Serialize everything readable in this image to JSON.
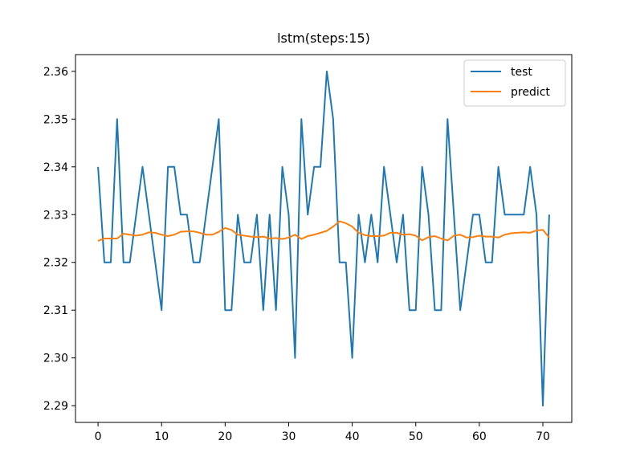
{
  "chart_data": {
    "type": "line",
    "title": "lstm(steps:15)",
    "xlabel": "",
    "ylabel": "",
    "xlim": [
      -3.55,
      74.55
    ],
    "ylim": [
      2.2865,
      2.3635
    ],
    "xticks": [
      0,
      10,
      20,
      30,
      40,
      50,
      60,
      70
    ],
    "yticks": [
      2.29,
      2.3,
      2.31,
      2.32,
      2.33,
      2.34,
      2.35,
      2.36
    ],
    "xtick_labels": [
      "0",
      "10",
      "20",
      "30",
      "40",
      "50",
      "60",
      "70"
    ],
    "ytick_labels": [
      "2.29",
      "2.30",
      "2.31",
      "2.32",
      "2.33",
      "2.34",
      "2.35",
      "2.36"
    ],
    "grid": false,
    "legend": "top-right",
    "series": [
      {
        "name": "test",
        "color": "#1f77b4",
        "values": [
          2.34,
          2.32,
          2.32,
          2.35,
          2.32,
          2.32,
          2.33,
          2.34,
          2.33,
          2.32,
          2.31,
          2.34,
          2.34,
          2.33,
          2.33,
          2.32,
          2.32,
          2.33,
          2.34,
          2.35,
          2.31,
          2.31,
          2.33,
          2.32,
          2.32,
          2.33,
          2.31,
          2.33,
          2.31,
          2.34,
          2.33,
          2.3,
          2.35,
          2.33,
          2.34,
          2.34,
          2.36,
          2.35,
          2.32,
          2.32,
          2.3,
          2.33,
          2.32,
          2.33,
          2.32,
          2.34,
          2.33,
          2.32,
          2.33,
          2.31,
          2.31,
          2.34,
          2.33,
          2.31,
          2.31,
          2.35,
          2.33,
          2.31,
          2.32,
          2.33,
          2.33,
          2.32,
          2.32,
          2.34,
          2.33,
          2.33,
          2.33,
          2.33,
          2.34,
          2.33,
          2.29,
          2.33
        ]
      },
      {
        "name": "predict",
        "color": "#ff7f0e",
        "values": [
          2.3245,
          2.325,
          2.325,
          2.325,
          2.326,
          2.3258,
          2.3256,
          2.3258,
          2.3263,
          2.3262,
          2.3258,
          2.3255,
          2.3258,
          2.3264,
          2.3265,
          2.3265,
          2.3262,
          2.3258,
          2.3258,
          2.3264,
          2.3272,
          2.3268,
          2.3258,
          2.3256,
          2.3254,
          2.3253,
          2.3254,
          2.325,
          2.3251,
          2.3249,
          2.3252,
          2.3258,
          2.3249,
          2.3255,
          2.3258,
          2.3262,
          2.3266,
          2.3275,
          2.3286,
          2.3282,
          2.3275,
          2.3262,
          2.3257,
          2.3255,
          2.3255,
          2.3256,
          2.3262,
          2.3262,
          2.3258,
          2.3259,
          2.3256,
          2.3246,
          2.3253,
          2.3255,
          2.325,
          2.3246,
          2.3256,
          2.3258,
          2.3252,
          2.3253,
          2.3256,
          2.3254,
          2.3254,
          2.3252,
          2.3258,
          2.3261,
          2.3262,
          2.3263,
          2.3262,
          2.3267,
          2.3268,
          2.3252
        ]
      }
    ]
  }
}
